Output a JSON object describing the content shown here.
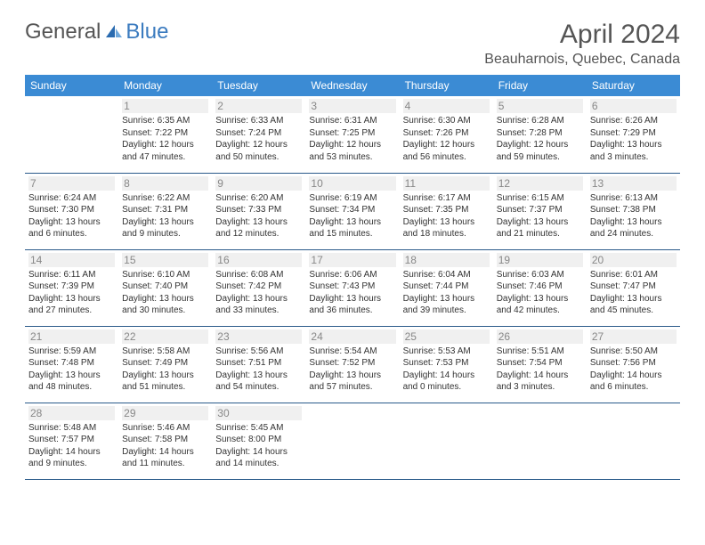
{
  "brand": {
    "text1": "General",
    "text2": "Blue",
    "iconColor": "#2a6bb0"
  },
  "title": "April 2024",
  "location": "Beauharnois, Quebec, Canada",
  "colors": {
    "header_bg": "#3b8bd4",
    "header_text": "#ffffff",
    "row_border": "#2a5a8a",
    "daynum_bg": "#f0f0f0",
    "daynum_text": "#888888",
    "body_text": "#333333",
    "title_text": "#555555"
  },
  "dayNames": [
    "Sunday",
    "Monday",
    "Tuesday",
    "Wednesday",
    "Thursday",
    "Friday",
    "Saturday"
  ],
  "weeks": [
    [
      null,
      {
        "n": "1",
        "sr": "Sunrise: 6:35 AM",
        "ss": "Sunset: 7:22 PM",
        "d1": "Daylight: 12 hours",
        "d2": "and 47 minutes."
      },
      {
        "n": "2",
        "sr": "Sunrise: 6:33 AM",
        "ss": "Sunset: 7:24 PM",
        "d1": "Daylight: 12 hours",
        "d2": "and 50 minutes."
      },
      {
        "n": "3",
        "sr": "Sunrise: 6:31 AM",
        "ss": "Sunset: 7:25 PM",
        "d1": "Daylight: 12 hours",
        "d2": "and 53 minutes."
      },
      {
        "n": "4",
        "sr": "Sunrise: 6:30 AM",
        "ss": "Sunset: 7:26 PM",
        "d1": "Daylight: 12 hours",
        "d2": "and 56 minutes."
      },
      {
        "n": "5",
        "sr": "Sunrise: 6:28 AM",
        "ss": "Sunset: 7:28 PM",
        "d1": "Daylight: 12 hours",
        "d2": "and 59 minutes."
      },
      {
        "n": "6",
        "sr": "Sunrise: 6:26 AM",
        "ss": "Sunset: 7:29 PM",
        "d1": "Daylight: 13 hours",
        "d2": "and 3 minutes."
      }
    ],
    [
      {
        "n": "7",
        "sr": "Sunrise: 6:24 AM",
        "ss": "Sunset: 7:30 PM",
        "d1": "Daylight: 13 hours",
        "d2": "and 6 minutes."
      },
      {
        "n": "8",
        "sr": "Sunrise: 6:22 AM",
        "ss": "Sunset: 7:31 PM",
        "d1": "Daylight: 13 hours",
        "d2": "and 9 minutes."
      },
      {
        "n": "9",
        "sr": "Sunrise: 6:20 AM",
        "ss": "Sunset: 7:33 PM",
        "d1": "Daylight: 13 hours",
        "d2": "and 12 minutes."
      },
      {
        "n": "10",
        "sr": "Sunrise: 6:19 AM",
        "ss": "Sunset: 7:34 PM",
        "d1": "Daylight: 13 hours",
        "d2": "and 15 minutes."
      },
      {
        "n": "11",
        "sr": "Sunrise: 6:17 AM",
        "ss": "Sunset: 7:35 PM",
        "d1": "Daylight: 13 hours",
        "d2": "and 18 minutes."
      },
      {
        "n": "12",
        "sr": "Sunrise: 6:15 AM",
        "ss": "Sunset: 7:37 PM",
        "d1": "Daylight: 13 hours",
        "d2": "and 21 minutes."
      },
      {
        "n": "13",
        "sr": "Sunrise: 6:13 AM",
        "ss": "Sunset: 7:38 PM",
        "d1": "Daylight: 13 hours",
        "d2": "and 24 minutes."
      }
    ],
    [
      {
        "n": "14",
        "sr": "Sunrise: 6:11 AM",
        "ss": "Sunset: 7:39 PM",
        "d1": "Daylight: 13 hours",
        "d2": "and 27 minutes."
      },
      {
        "n": "15",
        "sr": "Sunrise: 6:10 AM",
        "ss": "Sunset: 7:40 PM",
        "d1": "Daylight: 13 hours",
        "d2": "and 30 minutes."
      },
      {
        "n": "16",
        "sr": "Sunrise: 6:08 AM",
        "ss": "Sunset: 7:42 PM",
        "d1": "Daylight: 13 hours",
        "d2": "and 33 minutes."
      },
      {
        "n": "17",
        "sr": "Sunrise: 6:06 AM",
        "ss": "Sunset: 7:43 PM",
        "d1": "Daylight: 13 hours",
        "d2": "and 36 minutes."
      },
      {
        "n": "18",
        "sr": "Sunrise: 6:04 AM",
        "ss": "Sunset: 7:44 PM",
        "d1": "Daylight: 13 hours",
        "d2": "and 39 minutes."
      },
      {
        "n": "19",
        "sr": "Sunrise: 6:03 AM",
        "ss": "Sunset: 7:46 PM",
        "d1": "Daylight: 13 hours",
        "d2": "and 42 minutes."
      },
      {
        "n": "20",
        "sr": "Sunrise: 6:01 AM",
        "ss": "Sunset: 7:47 PM",
        "d1": "Daylight: 13 hours",
        "d2": "and 45 minutes."
      }
    ],
    [
      {
        "n": "21",
        "sr": "Sunrise: 5:59 AM",
        "ss": "Sunset: 7:48 PM",
        "d1": "Daylight: 13 hours",
        "d2": "and 48 minutes."
      },
      {
        "n": "22",
        "sr": "Sunrise: 5:58 AM",
        "ss": "Sunset: 7:49 PM",
        "d1": "Daylight: 13 hours",
        "d2": "and 51 minutes."
      },
      {
        "n": "23",
        "sr": "Sunrise: 5:56 AM",
        "ss": "Sunset: 7:51 PM",
        "d1": "Daylight: 13 hours",
        "d2": "and 54 minutes."
      },
      {
        "n": "24",
        "sr": "Sunrise: 5:54 AM",
        "ss": "Sunset: 7:52 PM",
        "d1": "Daylight: 13 hours",
        "d2": "and 57 minutes."
      },
      {
        "n": "25",
        "sr": "Sunrise: 5:53 AM",
        "ss": "Sunset: 7:53 PM",
        "d1": "Daylight: 14 hours",
        "d2": "and 0 minutes."
      },
      {
        "n": "26",
        "sr": "Sunrise: 5:51 AM",
        "ss": "Sunset: 7:54 PM",
        "d1": "Daylight: 14 hours",
        "d2": "and 3 minutes."
      },
      {
        "n": "27",
        "sr": "Sunrise: 5:50 AM",
        "ss": "Sunset: 7:56 PM",
        "d1": "Daylight: 14 hours",
        "d2": "and 6 minutes."
      }
    ],
    [
      {
        "n": "28",
        "sr": "Sunrise: 5:48 AM",
        "ss": "Sunset: 7:57 PM",
        "d1": "Daylight: 14 hours",
        "d2": "and 9 minutes."
      },
      {
        "n": "29",
        "sr": "Sunrise: 5:46 AM",
        "ss": "Sunset: 7:58 PM",
        "d1": "Daylight: 14 hours",
        "d2": "and 11 minutes."
      },
      {
        "n": "30",
        "sr": "Sunrise: 5:45 AM",
        "ss": "Sunset: 8:00 PM",
        "d1": "Daylight: 14 hours",
        "d2": "and 14 minutes."
      },
      null,
      null,
      null,
      null
    ]
  ]
}
